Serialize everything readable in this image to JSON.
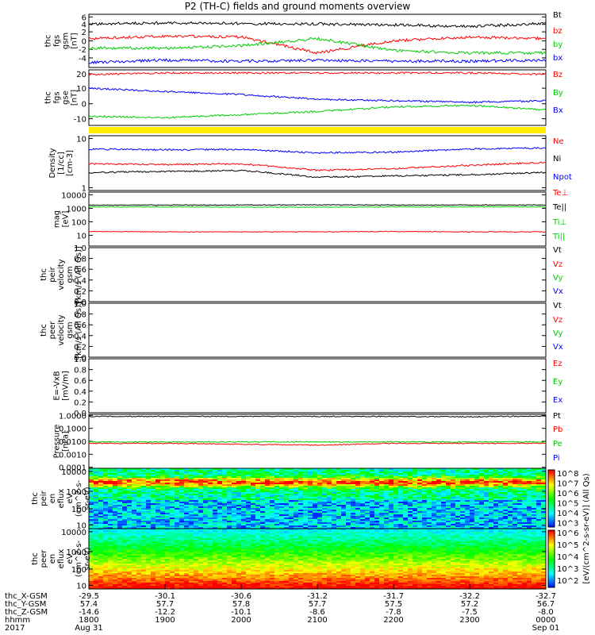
{
  "title": "P2 (TH-C) fields and ground moments overview",
  "panels": [
    {
      "id": "fgs-gsm",
      "ylabel": [
        "thc",
        "fgs",
        "gsm",
        "[nT]"
      ],
      "yticks": [
        "6",
        "4",
        "2",
        "0",
        "-2",
        "-4"
      ],
      "legend": [
        {
          "text": "Bt",
          "color": "#000000"
        },
        {
          "text": "bz",
          "color": "#ff0000"
        },
        {
          "text": "by",
          "color": "#00cc00"
        },
        {
          "text": "bx",
          "color": "#0000ff"
        }
      ]
    },
    {
      "id": "fgs-gse",
      "ylabel": [
        "thc",
        "fgs",
        "gse",
        "[nT]"
      ],
      "yticks": [
        "20",
        "10",
        "0",
        "-10"
      ],
      "legend": [
        {
          "text": "Bz",
          "color": "#ff0000"
        },
        {
          "text": "By",
          "color": "#00cc00"
        },
        {
          "text": "Bx",
          "color": "#0000ff"
        }
      ]
    },
    {
      "id": "density",
      "ylabel": [
        "Density",
        "[1/cc]",
        "[cm-3]"
      ],
      "yticks": [
        "10",
        "1"
      ],
      "legend": [
        {
          "text": "Ne",
          "color": "#ff0000"
        },
        {
          "text": "Ni",
          "color": "#000000"
        },
        {
          "text": "Npot",
          "color": "#0000ff"
        }
      ]
    },
    {
      "id": "temperature",
      "ylabel": [
        "mag",
        "[eV]"
      ],
      "yticks": [
        "10000",
        "1000",
        "100",
        "10"
      ],
      "legend": [
        {
          "text": "Te⊥",
          "color": "#ff0000"
        },
        {
          "text": "Te||",
          "color": "#000000"
        },
        {
          "text": "Ti⊥",
          "color": "#00cc00"
        },
        {
          "text": "Ti||",
          "color": "#00cc00"
        }
      ]
    },
    {
      "id": "peir-velocity",
      "ylabel": [
        "thc",
        "peir",
        "velocity",
        "gsm",
        "[km/s (All Qs)]"
      ],
      "yticks": [
        "1.0",
        "0.8",
        "0.6",
        "0.4",
        "0.2",
        "0.0"
      ],
      "legend": [
        {
          "text": "Vt",
          "color": "#000000"
        },
        {
          "text": "Vz",
          "color": "#ff0000"
        },
        {
          "text": "Vy",
          "color": "#00cc00"
        },
        {
          "text": "Vx",
          "color": "#0000ff"
        }
      ]
    },
    {
      "id": "peer-velocity",
      "ylabel": [
        "thc",
        "peer",
        "velocity",
        "gsm",
        "[km/s (All Qs)]"
      ],
      "yticks": [
        "1.0",
        "0.8",
        "0.6",
        "0.4",
        "0.2",
        "0.0"
      ],
      "legend": [
        {
          "text": "Vt",
          "color": "#000000"
        },
        {
          "text": "Vz",
          "color": "#ff0000"
        },
        {
          "text": "Vy",
          "color": "#00cc00"
        },
        {
          "text": "Vx",
          "color": "#0000ff"
        }
      ]
    },
    {
      "id": "efield",
      "ylabel": [
        "E=-VxB",
        "[mV/m]"
      ],
      "yticks": [
        "1.0",
        "0.8",
        "0.6",
        "0.4",
        "0.2",
        "0.0"
      ],
      "legend": [
        {
          "text": "Ez",
          "color": "#ff0000"
        },
        {
          "text": "Ey",
          "color": "#00cc00"
        },
        {
          "text": "Ex",
          "color": "#0000ff"
        }
      ]
    },
    {
      "id": "pressure",
      "ylabel": [
        "Pressure",
        "[nPa]"
      ],
      "yticks": [
        "1.0000",
        "0.1000",
        "0.0100",
        "0.0010",
        "0.0001"
      ],
      "legend": [
        {
          "text": "Pt",
          "color": "#000000"
        },
        {
          "text": "Pb",
          "color": "#ff0000"
        },
        {
          "text": "Pe",
          "color": "#00cc00"
        },
        {
          "text": "Pi",
          "color": "#0000ff"
        }
      ]
    },
    {
      "id": "peir-eflux",
      "ylabel": [
        "thc",
        "peir",
        "en",
        "eflux",
        "eV",
        "(cm^2-s-",
        "sr-eV)"
      ],
      "yticks": [
        "10000",
        "1000",
        "100",
        "10"
      ],
      "legend": []
    },
    {
      "id": "peer-eflux",
      "ylabel": [
        "thc",
        "peer",
        "en",
        "eflux",
        "eV",
        "(cm^2-s-",
        "sr-eV)"
      ],
      "yticks": [
        "10000",
        "1000",
        "100",
        "10"
      ],
      "legend": []
    }
  ],
  "colorbar": {
    "label": "[eV/(cm^2-s-sr-eV)] (All Qs)",
    "upper_ticks": [
      "10^8",
      "10^7",
      "10^6",
      "10^5",
      "10^4",
      "10^3"
    ],
    "lower_ticks": [
      "10^6",
      "10^5",
      "10^4",
      "10^3",
      "10^2"
    ]
  },
  "footer": {
    "rows": [
      {
        "label": "thc_X-GSM",
        "values": [
          "-29.5",
          "-30.1",
          "-30.6",
          "-31.2",
          "-31.7",
          "-32.2",
          "-32.7"
        ]
      },
      {
        "label": "thc_Y-GSM",
        "values": [
          "57.4",
          "57.7",
          "57.8",
          "57.7",
          "57.5",
          "57.2",
          "56.7"
        ]
      },
      {
        "label": "thc_Z-GSM",
        "values": [
          "-14.6",
          "-12.2",
          "-10.1",
          "-8.6",
          "-7.8",
          "-7.5",
          "-8.0"
        ]
      },
      {
        "label": "hhmm",
        "values": [
          "1800",
          "1900",
          "2000",
          "2100",
          "2200",
          "2300",
          "0000"
        ]
      },
      {
        "label": "2017",
        "values": [
          "Aug 31",
          "",
          "",
          "",
          "",
          "",
          "Sep 01"
        ]
      }
    ]
  },
  "chart_data": {
    "type": "line",
    "title": "P2 (TH-C) fields and ground moments overview",
    "x": [
      "1800",
      "1900",
      "2000",
      "2100",
      "2200",
      "2300",
      "0000"
    ],
    "xlabel": "hhmm",
    "series": [
      {
        "panel": "fgs-gsm",
        "name": "Bt",
        "values": [
          4.5,
          4.7,
          4.6,
          4.5,
          4.3,
          4.0,
          4.6
        ]
      },
      {
        "panel": "fgs-gsm",
        "name": "bz",
        "values": [
          1.5,
          2.0,
          1.8,
          -1.5,
          1.0,
          1.8,
          1.5
        ]
      },
      {
        "panel": "fgs-gsm",
        "name": "by",
        "values": [
          -0.5,
          -0.5,
          0.0,
          1.5,
          -1.0,
          -1.5,
          -1.5
        ]
      },
      {
        "panel": "fgs-gsm",
        "name": "bx",
        "values": [
          -3.5,
          -3.0,
          -3.2,
          -3.0,
          -3.2,
          -3.2,
          -3.0
        ]
      },
      {
        "panel": "fgs-gse",
        "name": "Bz",
        "values": [
          19,
          20,
          20,
          20,
          20,
          20,
          19
        ]
      },
      {
        "panel": "fgs-gse",
        "name": "By",
        "values": [
          -8,
          -9,
          -7,
          -5,
          -2,
          -1,
          -4
        ]
      },
      {
        "panel": "fgs-gse",
        "name": "Bx",
        "values": [
          10,
          8,
          6,
          3,
          2,
          1,
          2
        ]
      },
      {
        "panel": "density",
        "name": "Ne",
        "values": [
          3.0,
          2.9,
          3.0,
          2.2,
          2.4,
          2.8,
          3.2
        ]
      },
      {
        "panel": "density",
        "name": "Ni",
        "values": [
          2.0,
          2.1,
          2.2,
          1.6,
          1.7,
          1.8,
          2.0
        ]
      },
      {
        "panel": "density",
        "name": "Npot",
        "values": [
          6.0,
          5.8,
          5.9,
          5.0,
          5.2,
          6.0,
          6.3
        ]
      },
      {
        "panel": "temperature",
        "name": "Te||",
        "values": [
          1600,
          1650,
          1650,
          1700,
          1650,
          1650,
          1650
        ]
      },
      {
        "panel": "temperature",
        "name": "Ti⊥",
        "values": [
          1200,
          1200,
          1150,
          1150,
          1200,
          1200,
          1200
        ]
      },
      {
        "panel": "temperature",
        "name": "Te⊥",
        "values": [
          18,
          17,
          17,
          17,
          18,
          17,
          17
        ]
      },
      {
        "panel": "pressure",
        "name": "Pt",
        "values": [
          0.8,
          0.8,
          0.8,
          0.8,
          0.8,
          0.75,
          0.85
        ]
      },
      {
        "panel": "pressure",
        "name": "Pe",
        "values": [
          0.009,
          0.009,
          0.009,
          0.009,
          0.009,
          0.009,
          0.009
        ]
      },
      {
        "panel": "pressure",
        "name": "Pb",
        "values": [
          0.007,
          0.007,
          0.006,
          0.005,
          0.007,
          0.007,
          0.007
        ]
      }
    ]
  }
}
